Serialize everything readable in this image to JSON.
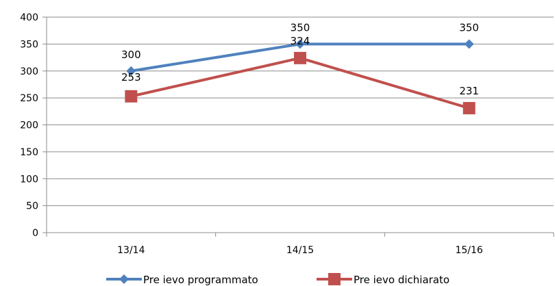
{
  "chart_data": {
    "type": "line",
    "categories": [
      "13/14",
      "14/15",
      "15/16"
    ],
    "series": [
      {
        "name": "Pre ievo programmato",
        "values": [
          300,
          350,
          350
        ],
        "color": "#4f81bd",
        "marker": "diamond"
      },
      {
        "name": "Pre ievo dichiarato",
        "values": [
          253,
          324,
          231
        ],
        "color": "#c0504d",
        "marker": "square"
      }
    ],
    "title": "",
    "xlabel": "",
    "ylabel": "",
    "ylim": [
      0,
      400
    ],
    "yticks": [
      0,
      50,
      100,
      150,
      200,
      250,
      300,
      350,
      400
    ],
    "grid": true,
    "legend_position": "bottom"
  }
}
